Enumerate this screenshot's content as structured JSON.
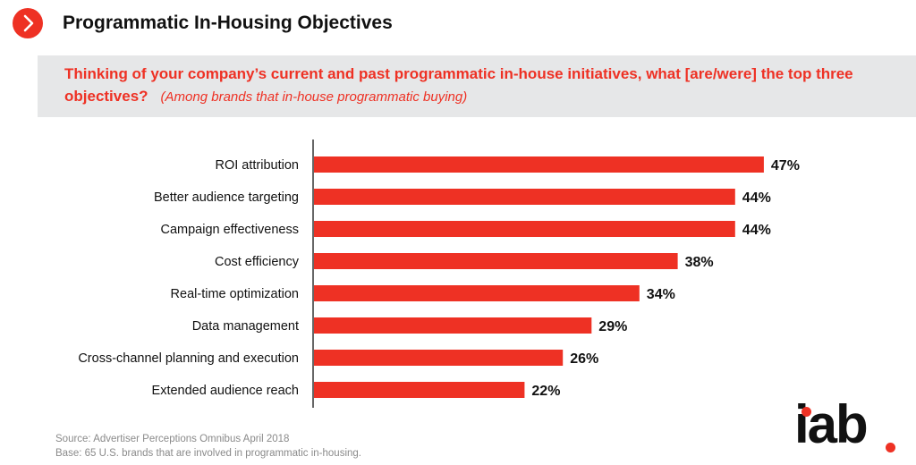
{
  "header": {
    "title": "Programmatic In-Housing Objectives",
    "nav_icon": "chevron-right-icon",
    "accent_color": "#ee3124"
  },
  "question": {
    "text": "Thinking of your company’s current and past programmatic in-house initiatives, what [are/were] the top three objectives?",
    "base_note": "(Among brands that in-house programmatic buying)"
  },
  "chart_data": {
    "type": "bar",
    "orientation": "horizontal",
    "categories": [
      "ROI attribution",
      "Better audience targeting",
      "Campaign effectiveness",
      "Cost efficiency",
      "Real-time optimization",
      "Data management",
      "Cross-channel planning and execution",
      "Extended audience reach"
    ],
    "values": [
      47,
      44,
      44,
      38,
      34,
      29,
      26,
      22
    ],
    "value_labels": [
      "47%",
      "44%",
      "44%",
      "38%",
      "34%",
      "29%",
      "26%",
      "22%"
    ],
    "unit": "%",
    "bar_color": "#ee3124",
    "xlim": [
      0,
      50
    ],
    "grid": false,
    "legend": "none"
  },
  "footer": {
    "source": "Source: Advertiser Perceptions Omnibus April 2018",
    "base": "Base: 65 U.S. brands that are involved in programmatic in-housing."
  },
  "logo": {
    "text": "iab",
    "dot_color": "#ee3124"
  }
}
